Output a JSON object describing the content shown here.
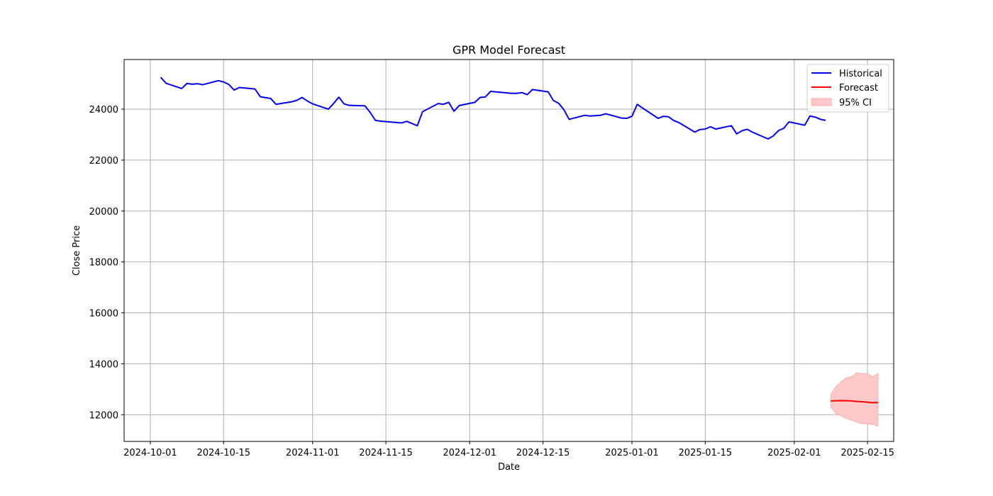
{
  "chart_data": {
    "type": "line",
    "title": "GPR Model Forecast",
    "xlabel": "Date",
    "ylabel": "Close Price",
    "xlim": [
      "2024-09-26",
      "2025-02-20"
    ],
    "ylim": [
      10950,
      25950
    ],
    "grid": true,
    "legend_position": "top-right",
    "xticks": [
      "2024-10-01",
      "2024-10-15",
      "2024-11-01",
      "2024-11-15",
      "2024-12-01",
      "2024-12-15",
      "2025-01-01",
      "2025-01-15",
      "2025-02-01",
      "2025-02-15"
    ],
    "yticks": [
      12000,
      14000,
      16000,
      18000,
      20000,
      22000,
      24000
    ],
    "colors": {
      "historical": "#0000ff",
      "forecast": "#ff0000",
      "ci_fill": "#ffc9c9",
      "ci_edge": "#ffaaaa",
      "grid": "#b0b0b0"
    },
    "series": [
      {
        "name": "Historical",
        "x": [
          "2024-10-03",
          "2024-10-04",
          "2024-10-07",
          "2024-10-08",
          "2024-10-09",
          "2024-10-10",
          "2024-10-11",
          "2024-10-14",
          "2024-10-15",
          "2024-10-16",
          "2024-10-17",
          "2024-10-18",
          "2024-10-21",
          "2024-10-22",
          "2024-10-24",
          "2024-10-25",
          "2024-10-28",
          "2024-10-29",
          "2024-10-30",
          "2024-10-31",
          "2024-11-01",
          "2024-11-04",
          "2024-11-05",
          "2024-11-06",
          "2024-11-07",
          "2024-11-08",
          "2024-11-11",
          "2024-11-12",
          "2024-11-13",
          "2024-11-14",
          "2024-11-18",
          "2024-11-19",
          "2024-11-21",
          "2024-11-22",
          "2024-11-25",
          "2024-11-26",
          "2024-11-27",
          "2024-11-28",
          "2024-11-29",
          "2024-12-02",
          "2024-12-03",
          "2024-12-04",
          "2024-12-05",
          "2024-12-06",
          "2024-12-09",
          "2024-12-10",
          "2024-12-11",
          "2024-12-12",
          "2024-12-13",
          "2024-12-16",
          "2024-12-17",
          "2024-12-18",
          "2024-12-19",
          "2024-12-20",
          "2024-12-23",
          "2024-12-24",
          "2024-12-26",
          "2024-12-27",
          "2024-12-30",
          "2024-12-31",
          "2025-01-01",
          "2025-01-02",
          "2025-01-03",
          "2025-01-06",
          "2025-01-07",
          "2025-01-08",
          "2025-01-09",
          "2025-01-10",
          "2025-01-13",
          "2025-01-14",
          "2025-01-15",
          "2025-01-16",
          "2025-01-17",
          "2025-01-20",
          "2025-01-21",
          "2025-01-22",
          "2025-01-23",
          "2025-01-24",
          "2025-01-27",
          "2025-01-28",
          "2025-01-29",
          "2025-01-30",
          "2025-01-31",
          "2025-02-03",
          "2025-02-04",
          "2025-02-05",
          "2025-02-06",
          "2025-02-07"
        ],
        "values": [
          25250,
          25020,
          24810,
          25010,
          24980,
          25000,
          24960,
          25120,
          25070,
          24970,
          24750,
          24850,
          24790,
          24490,
          24420,
          24190,
          24290,
          24350,
          24460,
          24320,
          24210,
          24000,
          24220,
          24470,
          24210,
          24150,
          24130,
          23870,
          23560,
          23530,
          23460,
          23520,
          23350,
          23900,
          24220,
          24190,
          24270,
          23920,
          24140,
          24270,
          24460,
          24480,
          24700,
          24680,
          24620,
          24620,
          24650,
          24570,
          24770,
          24680,
          24340,
          24230,
          23980,
          23600,
          23760,
          23730,
          23760,
          23820,
          23650,
          23640,
          23720,
          24190,
          24050,
          23640,
          23720,
          23700,
          23550,
          23470,
          23100,
          23200,
          23220,
          23310,
          23220,
          23350,
          23030,
          23150,
          23210,
          23100,
          22830,
          22950,
          23160,
          23250,
          23500,
          23370,
          23730,
          23690,
          23600,
          23560
        ]
      },
      {
        "name": "Forecast",
        "x": [
          "2025-02-08",
          "2025-02-09",
          "2025-02-10",
          "2025-02-11",
          "2025-02-12",
          "2025-02-13",
          "2025-02-14",
          "2025-02-15",
          "2025-02-16",
          "2025-02-17"
        ],
        "values": [
          12540,
          12550,
          12555,
          12550,
          12540,
          12520,
          12510,
          12490,
          12470,
          12480
        ]
      }
    ],
    "confidence_band": {
      "name": "95% CI",
      "x": [
        "2025-02-08",
        "2025-02-09",
        "2025-02-10",
        "2025-02-11",
        "2025-02-12",
        "2025-02-13",
        "2025-02-14",
        "2025-02-15",
        "2025-02-16",
        "2025-02-17"
      ],
      "upper": [
        12800,
        13100,
        13300,
        13450,
        13500,
        13650,
        13600,
        13620,
        13480,
        13620
      ],
      "lower": [
        12300,
        12050,
        11950,
        11850,
        11780,
        11700,
        11650,
        11640,
        11620,
        11550
      ]
    }
  }
}
